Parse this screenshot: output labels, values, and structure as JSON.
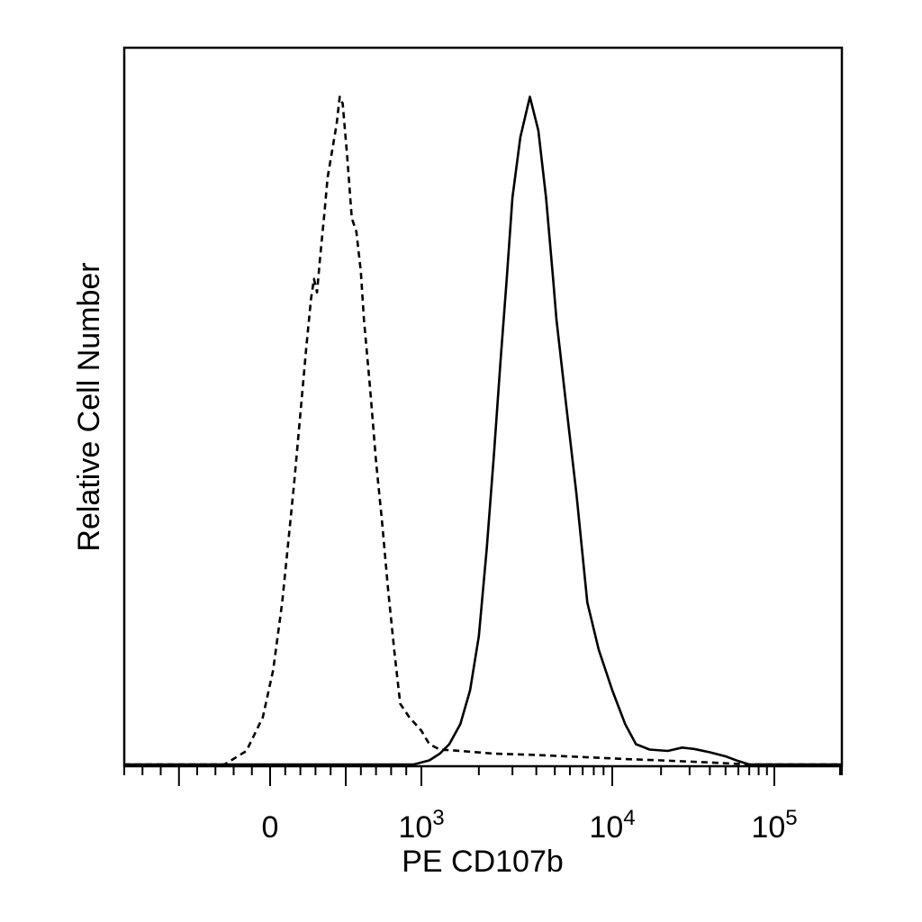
{
  "chart_data": {
    "type": "line",
    "title": "",
    "xlabel": "PE CD107b",
    "ylabel": "Relative Cell Number",
    "x_scale": "biexponential",
    "xlim": [
      -800,
      200000
    ],
    "ylim": [
      0,
      1
    ],
    "grid": false,
    "legend": "none",
    "x_tick_labels": [
      {
        "value": 0,
        "base": "0",
        "exp": ""
      },
      {
        "value": 1000,
        "base": "10",
        "exp": "3"
      },
      {
        "value": 10000,
        "base": "10",
        "exp": "4"
      },
      {
        "value": 100000,
        "base": "10",
        "exp": "5"
      }
    ],
    "series": [
      {
        "style": "dashed",
        "color": "#000000",
        "points": [
          [
            -800,
            0.0
          ],
          [
            -250,
            0.0
          ],
          [
            -130,
            0.02
          ],
          [
            -40,
            0.07
          ],
          [
            20,
            0.14
          ],
          [
            80,
            0.24
          ],
          [
            120,
            0.33
          ],
          [
            160,
            0.42
          ],
          [
            200,
            0.52
          ],
          [
            240,
            0.62
          ],
          [
            270,
            0.69
          ],
          [
            290,
            0.72
          ],
          [
            310,
            0.7
          ],
          [
            330,
            0.75
          ],
          [
            360,
            0.82
          ],
          [
            380,
            0.87
          ],
          [
            410,
            0.91
          ],
          [
            440,
            0.95
          ],
          [
            460,
            0.99
          ],
          [
            480,
            0.98
          ],
          [
            510,
            0.9
          ],
          [
            540,
            0.81
          ],
          [
            570,
            0.79
          ],
          [
            600,
            0.73
          ],
          [
            620,
            0.66
          ],
          [
            660,
            0.56
          ],
          [
            700,
            0.45
          ],
          [
            740,
            0.36
          ],
          [
            780,
            0.26
          ],
          [
            820,
            0.17
          ],
          [
            860,
            0.09
          ],
          [
            920,
            0.07
          ],
          [
            1000,
            0.05
          ],
          [
            1100,
            0.03
          ],
          [
            1250,
            0.022
          ],
          [
            1600,
            0.02
          ],
          [
            2400,
            0.016
          ],
          [
            4000,
            0.014
          ],
          [
            7000,
            0.011
          ],
          [
            12000,
            0.008
          ],
          [
            20000,
            0.006
          ],
          [
            40000,
            0.003
          ],
          [
            70000,
            0.0
          ],
          [
            200000,
            0.0
          ]
        ]
      },
      {
        "style": "solid",
        "color": "#000000",
        "points": [
          [
            -800,
            0.0
          ],
          [
            950,
            0.0
          ],
          [
            1100,
            0.006
          ],
          [
            1250,
            0.016
          ],
          [
            1400,
            0.03
          ],
          [
            1600,
            0.06
          ],
          [
            1800,
            0.11
          ],
          [
            2000,
            0.19
          ],
          [
            2200,
            0.32
          ],
          [
            2400,
            0.46
          ],
          [
            2600,
            0.6
          ],
          [
            2800,
            0.72
          ],
          [
            3000,
            0.84
          ],
          [
            3300,
            0.93
          ],
          [
            3700,
            0.99
          ],
          [
            4100,
            0.94
          ],
          [
            4500,
            0.84
          ],
          [
            4900,
            0.72
          ],
          [
            5100,
            0.66
          ],
          [
            5700,
            0.54
          ],
          [
            6500,
            0.4
          ],
          [
            7400,
            0.24
          ],
          [
            8500,
            0.17
          ],
          [
            10000,
            0.11
          ],
          [
            12000,
            0.06
          ],
          [
            14000,
            0.03
          ],
          [
            17000,
            0.022
          ],
          [
            22000,
            0.02
          ],
          [
            27000,
            0.025
          ],
          [
            32000,
            0.023
          ],
          [
            40000,
            0.018
          ],
          [
            50000,
            0.012
          ],
          [
            60000,
            0.005
          ],
          [
            70000,
            0.0
          ],
          [
            200000,
            0.0
          ]
        ]
      }
    ]
  }
}
